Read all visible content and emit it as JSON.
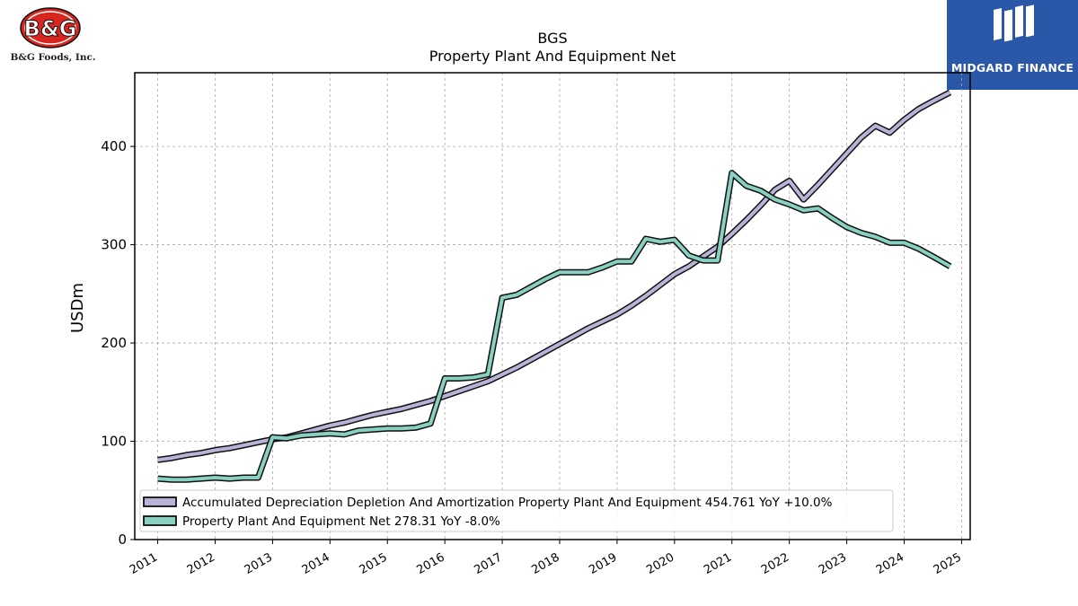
{
  "header": {
    "company_logo_text": "B&G",
    "company_name": "B&G Foods, Inc.",
    "brand_name": "MIDGARD FINANCE"
  },
  "colors": {
    "series_1": "#b8b4d8",
    "series_2": "#88d0c0",
    "outline": "#111111",
    "grid": "#aaaaaa",
    "brand_bg": "#2b57a8"
  },
  "chart_data": {
    "type": "line",
    "title": "BGS",
    "subtitle": "Property Plant And Equipment Net",
    "xlabel": "",
    "ylabel": "USDm",
    "xlim": [
      2010.6,
      2025.15
    ],
    "ylim": [
      0,
      475
    ],
    "x_ticks": [
      "2011",
      "2012",
      "2013",
      "2014",
      "2015",
      "2016",
      "2017",
      "2018",
      "2019",
      "2020",
      "2021",
      "2022",
      "2023",
      "2024",
      "2025"
    ],
    "y_ticks": [
      "0",
      "100",
      "200",
      "300",
      "400"
    ],
    "grid": true,
    "legend_position": "lower-left",
    "series": [
      {
        "name": "Accumulated Depreciation Depletion And Amortization Property Plant And Equipment  454.761 YoY +10.0%",
        "points": [
          [
            2011.0,
            81
          ],
          [
            2011.25,
            83
          ],
          [
            2011.5,
            86
          ],
          [
            2011.75,
            88
          ],
          [
            2012.0,
            91
          ],
          [
            2012.25,
            93
          ],
          [
            2012.5,
            96
          ],
          [
            2012.75,
            99
          ],
          [
            2013.0,
            102
          ],
          [
            2013.25,
            104
          ],
          [
            2013.5,
            108
          ],
          [
            2013.75,
            112
          ],
          [
            2014.0,
            116
          ],
          [
            2014.25,
            119
          ],
          [
            2014.5,
            123
          ],
          [
            2014.75,
            127
          ],
          [
            2015.0,
            130
          ],
          [
            2015.25,
            133
          ],
          [
            2015.5,
            137
          ],
          [
            2015.75,
            141
          ],
          [
            2016.0,
            146
          ],
          [
            2016.25,
            151
          ],
          [
            2016.5,
            156
          ],
          [
            2016.75,
            161
          ],
          [
            2017.0,
            168
          ],
          [
            2017.25,
            175
          ],
          [
            2017.5,
            183
          ],
          [
            2017.75,
            191
          ],
          [
            2018.0,
            199
          ],
          [
            2018.25,
            207
          ],
          [
            2018.5,
            215
          ],
          [
            2018.75,
            222
          ],
          [
            2019.0,
            229
          ],
          [
            2019.25,
            238
          ],
          [
            2019.5,
            248
          ],
          [
            2019.75,
            259
          ],
          [
            2020.0,
            270
          ],
          [
            2020.25,
            278
          ],
          [
            2020.5,
            288
          ],
          [
            2020.75,
            298
          ],
          [
            2021.0,
            311
          ],
          [
            2021.25,
            325
          ],
          [
            2021.5,
            340
          ],
          [
            2021.75,
            356
          ],
          [
            2022.0,
            365
          ],
          [
            2022.25,
            346
          ],
          [
            2022.5,
            361
          ],
          [
            2022.75,
            377
          ],
          [
            2023.0,
            393
          ],
          [
            2023.25,
            409
          ],
          [
            2023.5,
            421
          ],
          [
            2023.75,
            414
          ],
          [
            2024.0,
            427
          ],
          [
            2024.25,
            438
          ],
          [
            2024.5,
            446
          ],
          [
            2024.8,
            455
          ]
        ]
      },
      {
        "name": "Property Plant And Equipment Net  278.31 YoY -8.0%",
        "points": [
          [
            2011.0,
            62
          ],
          [
            2011.25,
            61
          ],
          [
            2011.5,
            61
          ],
          [
            2011.75,
            62
          ],
          [
            2012.0,
            63
          ],
          [
            2012.25,
            62
          ],
          [
            2012.5,
            63
          ],
          [
            2012.75,
            63
          ],
          [
            2013.0,
            104
          ],
          [
            2013.25,
            103
          ],
          [
            2013.5,
            106
          ],
          [
            2013.75,
            107
          ],
          [
            2014.0,
            108
          ],
          [
            2014.25,
            107
          ],
          [
            2014.5,
            111
          ],
          [
            2014.75,
            112
          ],
          [
            2015.0,
            113
          ],
          [
            2015.25,
            113
          ],
          [
            2015.5,
            114
          ],
          [
            2015.75,
            118
          ],
          [
            2016.0,
            164
          ],
          [
            2016.25,
            164
          ],
          [
            2016.5,
            165
          ],
          [
            2016.75,
            168
          ],
          [
            2017.0,
            246
          ],
          [
            2017.25,
            249
          ],
          [
            2017.5,
            257
          ],
          [
            2017.75,
            265
          ],
          [
            2018.0,
            272
          ],
          [
            2018.25,
            272
          ],
          [
            2018.5,
            272
          ],
          [
            2018.75,
            277
          ],
          [
            2019.0,
            283
          ],
          [
            2019.25,
            283
          ],
          [
            2019.5,
            306
          ],
          [
            2019.75,
            303
          ],
          [
            2020.0,
            305
          ],
          [
            2020.25,
            289
          ],
          [
            2020.5,
            284
          ],
          [
            2020.75,
            284
          ],
          [
            2021.0,
            373
          ],
          [
            2021.25,
            360
          ],
          [
            2021.5,
            355
          ],
          [
            2021.75,
            346
          ],
          [
            2022.0,
            341
          ],
          [
            2022.25,
            335
          ],
          [
            2022.5,
            337
          ],
          [
            2022.75,
            327
          ],
          [
            2023.0,
            318
          ],
          [
            2023.25,
            312
          ],
          [
            2023.5,
            308
          ],
          [
            2023.75,
            302
          ],
          [
            2024.0,
            302
          ],
          [
            2024.25,
            296
          ],
          [
            2024.5,
            288
          ],
          [
            2024.8,
            278
          ]
        ]
      }
    ]
  }
}
